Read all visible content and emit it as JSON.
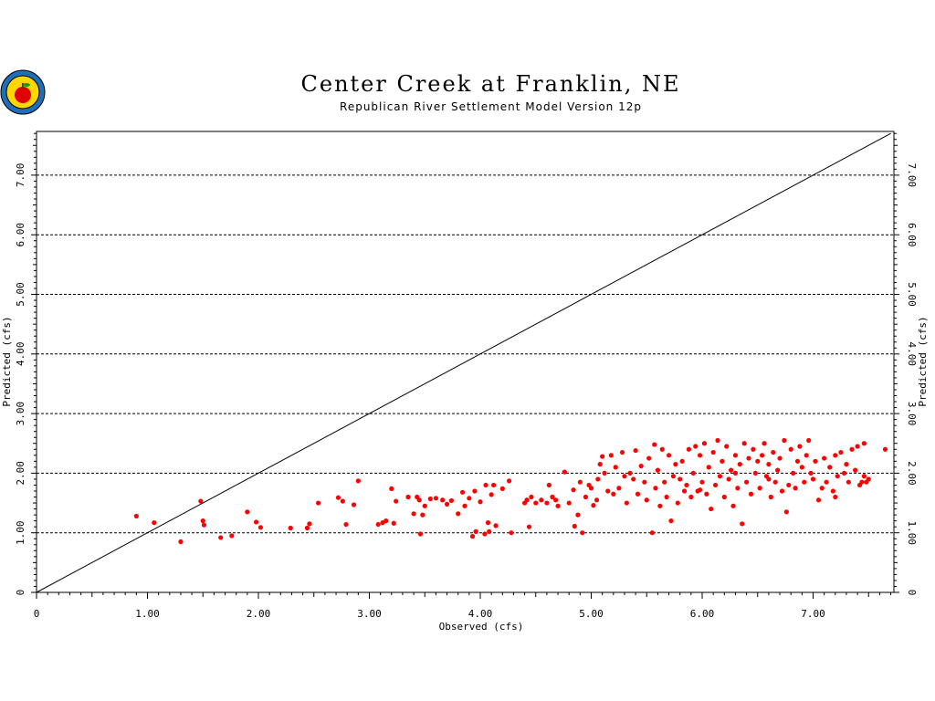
{
  "logo": {
    "icon": "apple-logo-icon"
  },
  "chart_data": {
    "type": "scatter",
    "title": "Center Creek at Franklin, NE",
    "subtitle": "Republican River Settlement Model Version 12p",
    "xlabel": "Observed (cfs)",
    "ylabel": "Predicted (cfs)",
    "xlim": [
      0,
      7.7
    ],
    "ylim": [
      0,
      7.7
    ],
    "x_ticks": [
      "0",
      "1.00",
      "2.00",
      "3.00",
      "4.00",
      "5.00",
      "6.00",
      "7.00"
    ],
    "y_ticks": [
      "0",
      "1.00",
      "2.00",
      "3.00",
      "4.00",
      "5.00",
      "6.00",
      "7.00"
    ],
    "x_tick_values": [
      0,
      1,
      2,
      3,
      4,
      5,
      6,
      7
    ],
    "y_tick_values": [
      0,
      1,
      2,
      3,
      4,
      5,
      6,
      7
    ],
    "grid": "horizontal dashed",
    "reference_line": "1:1",
    "point_color": "#ff0000",
    "line_color": "#000000",
    "series": [
      {
        "points": [
          [
            0.9,
            1.28
          ],
          [
            1.06,
            1.17
          ],
          [
            1.3,
            0.85
          ],
          [
            1.48,
            1.53
          ],
          [
            1.5,
            1.2
          ],
          [
            1.51,
            1.13
          ],
          [
            1.66,
            0.92
          ],
          [
            1.76,
            0.95
          ],
          [
            1.9,
            1.35
          ],
          [
            1.98,
            1.18
          ],
          [
            2.02,
            1.09
          ],
          [
            2.29,
            1.08
          ],
          [
            2.44,
            1.08
          ],
          [
            2.46,
            1.15
          ],
          [
            2.54,
            1.5
          ],
          [
            2.72,
            1.59
          ],
          [
            2.76,
            1.53
          ],
          [
            2.79,
            1.14
          ],
          [
            2.86,
            1.47
          ],
          [
            2.9,
            1.87
          ],
          [
            3.08,
            1.14
          ],
          [
            3.12,
            1.17
          ],
          [
            3.15,
            1.2
          ],
          [
            3.2,
            1.74
          ],
          [
            3.22,
            1.16
          ],
          [
            3.24,
            1.53
          ],
          [
            3.35,
            1.6
          ],
          [
            3.4,
            1.32
          ],
          [
            3.43,
            1.6
          ],
          [
            3.45,
            1.55
          ],
          [
            3.46,
            0.98
          ],
          [
            3.48,
            1.3
          ],
          [
            3.5,
            1.45
          ],
          [
            3.55,
            1.57
          ],
          [
            3.6,
            1.58
          ],
          [
            3.66,
            1.55
          ],
          [
            3.7,
            1.48
          ],
          [
            3.74,
            1.54
          ],
          [
            3.8,
            1.32
          ],
          [
            3.84,
            1.68
          ],
          [
            3.86,
            1.45
          ],
          [
            3.9,
            1.58
          ],
          [
            3.93,
            0.94
          ],
          [
            3.95,
            1.7
          ],
          [
            3.96,
            1.02
          ],
          [
            4.0,
            1.52
          ],
          [
            4.04,
            0.98
          ],
          [
            4.05,
            1.8
          ],
          [
            4.07,
            1.17
          ],
          [
            4.08,
            1.02
          ],
          [
            4.1,
            1.64
          ],
          [
            4.12,
            1.8
          ],
          [
            4.14,
            1.12
          ],
          [
            4.2,
            1.74
          ],
          [
            4.26,
            1.87
          ],
          [
            4.28,
            1.0
          ],
          [
            4.4,
            1.5
          ],
          [
            4.42,
            1.55
          ],
          [
            4.44,
            1.1
          ],
          [
            4.46,
            1.6
          ],
          [
            4.5,
            1.5
          ],
          [
            4.55,
            1.55
          ],
          [
            4.6,
            1.5
          ],
          [
            4.62,
            1.8
          ],
          [
            4.65,
            1.6
          ],
          [
            4.68,
            1.55
          ],
          [
            4.7,
            1.45
          ],
          [
            4.76,
            2.02
          ],
          [
            4.8,
            1.5
          ],
          [
            4.84,
            1.72
          ],
          [
            4.85,
            1.11
          ],
          [
            4.88,
            1.3
          ],
          [
            4.9,
            1.85
          ],
          [
            4.92,
            1.0
          ],
          [
            4.95,
            1.6
          ],
          [
            4.98,
            1.8
          ],
          [
            5.0,
            1.75
          ],
          [
            5.02,
            1.46
          ],
          [
            5.05,
            1.55
          ],
          [
            5.06,
            1.9
          ],
          [
            5.08,
            2.15
          ],
          [
            5.1,
            2.28
          ],
          [
            5.12,
            2.0
          ],
          [
            5.15,
            1.7
          ],
          [
            5.18,
            2.3
          ],
          [
            5.2,
            1.65
          ],
          [
            5.22,
            2.1
          ],
          [
            5.25,
            1.75
          ],
          [
            5.28,
            2.35
          ],
          [
            5.3,
            1.95
          ],
          [
            5.32,
            1.5
          ],
          [
            5.35,
            2.0
          ],
          [
            5.38,
            1.9
          ],
          [
            5.4,
            2.38
          ],
          [
            5.42,
            1.65
          ],
          [
            5.45,
            2.12
          ],
          [
            5.48,
            1.85
          ],
          [
            5.5,
            1.55
          ],
          [
            5.52,
            2.25
          ],
          [
            5.55,
            1.0
          ],
          [
            5.57,
            2.48
          ],
          [
            5.58,
            1.75
          ],
          [
            5.6,
            2.05
          ],
          [
            5.62,
            1.45
          ],
          [
            5.64,
            2.4
          ],
          [
            5.66,
            1.85
          ],
          [
            5.68,
            1.6
          ],
          [
            5.7,
            2.3
          ],
          [
            5.72,
            1.2
          ],
          [
            5.74,
            1.95
          ],
          [
            5.76,
            2.15
          ],
          [
            5.78,
            1.5
          ],
          [
            5.8,
            1.9
          ],
          [
            5.82,
            2.2
          ],
          [
            5.84,
            1.7
          ],
          [
            5.86,
            1.8
          ],
          [
            5.88,
            2.4
          ],
          [
            5.9,
            1.6
          ],
          [
            5.92,
            2.0
          ],
          [
            5.94,
            2.45
          ],
          [
            5.96,
            1.7
          ],
          [
            5.98,
            2.3
          ],
          [
            6.0,
            1.85
          ],
          [
            6.02,
            2.5
          ],
          [
            6.04,
            1.65
          ],
          [
            6.06,
            2.1
          ],
          [
            6.08,
            1.4
          ],
          [
            6.1,
            2.35
          ],
          [
            6.12,
            1.8
          ],
          [
            6.14,
            2.55
          ],
          [
            6.16,
            1.95
          ],
          [
            6.18,
            2.2
          ],
          [
            6.2,
            1.6
          ],
          [
            6.22,
            2.45
          ],
          [
            6.24,
            1.9
          ],
          [
            6.26,
            2.05
          ],
          [
            6.28,
            1.45
          ],
          [
            6.3,
            2.3
          ],
          [
            6.32,
            1.75
          ],
          [
            6.34,
            2.15
          ],
          [
            6.36,
            1.15
          ],
          [
            6.38,
            2.5
          ],
          [
            6.4,
            1.85
          ],
          [
            6.42,
            2.25
          ],
          [
            6.44,
            1.65
          ],
          [
            6.46,
            2.4
          ],
          [
            6.48,
            2.0
          ],
          [
            6.5,
            2.2
          ],
          [
            6.52,
            1.75
          ],
          [
            6.54,
            2.3
          ],
          [
            6.56,
            2.5
          ],
          [
            6.58,
            1.95
          ],
          [
            6.6,
            2.15
          ],
          [
            6.62,
            1.6
          ],
          [
            6.64,
            2.35
          ],
          [
            6.66,
            1.85
          ],
          [
            6.68,
            2.05
          ],
          [
            6.7,
            2.25
          ],
          [
            6.72,
            1.7
          ],
          [
            6.74,
            2.55
          ],
          [
            6.76,
            1.35
          ],
          [
            6.78,
            1.8
          ],
          [
            6.8,
            2.4
          ],
          [
            6.82,
            2.0
          ],
          [
            6.84,
            1.75
          ],
          [
            6.86,
            2.2
          ],
          [
            6.88,
            2.45
          ],
          [
            6.9,
            2.1
          ],
          [
            6.92,
            1.85
          ],
          [
            6.94,
            2.3
          ],
          [
            6.96,
            2.55
          ],
          [
            6.98,
            2.0
          ],
          [
            7.0,
            1.9
          ],
          [
            7.02,
            2.2
          ],
          [
            7.05,
            1.55
          ],
          [
            7.08,
            1.75
          ],
          [
            7.1,
            2.25
          ],
          [
            7.12,
            1.85
          ],
          [
            7.15,
            2.1
          ],
          [
            7.18,
            1.7
          ],
          [
            7.2,
            2.3
          ],
          [
            7.22,
            1.95
          ],
          [
            7.25,
            2.35
          ],
          [
            7.28,
            2.0
          ],
          [
            7.3,
            2.15
          ],
          [
            7.32,
            1.85
          ],
          [
            7.35,
            2.4
          ],
          [
            7.38,
            2.05
          ],
          [
            7.4,
            2.45
          ],
          [
            7.42,
            1.8
          ],
          [
            7.44,
            1.85
          ],
          [
            7.46,
            1.95
          ],
          [
            7.48,
            1.85
          ],
          [
            7.5,
            1.9
          ],
          [
            7.65,
            2.4
          ],
          [
            7.46,
            2.5
          ],
          [
            7.2,
            1.6
          ],
          [
            6.6,
            1.9
          ],
          [
            6.3,
            2.0
          ],
          [
            5.98,
            1.72
          ]
        ]
      }
    ]
  }
}
